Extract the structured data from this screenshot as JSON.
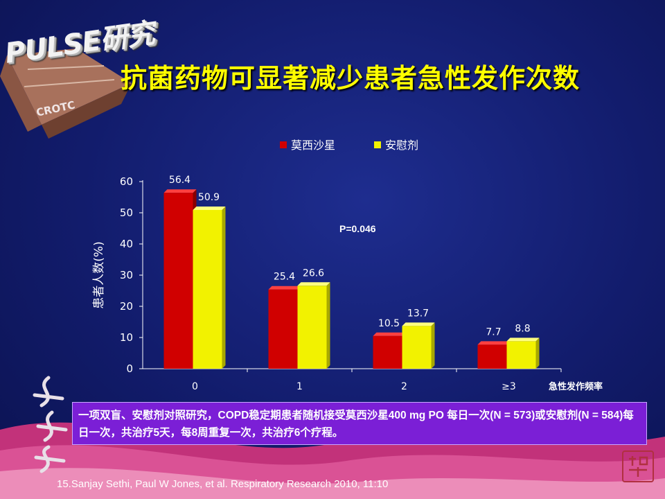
{
  "logo": {
    "text": "PULSE研究",
    "sub": "CROTC"
  },
  "title": "抗菌药物可显著减少患者急性发作次数",
  "p_value": "P=0.046",
  "note": "一项双盲、安慰剂对照研究，COPD稳定期患者随机接受莫西沙星400 mg PO 每日一次(N = 573)或安慰剂(N = 584)每日一次，共治疗5天，每8周重复一次，共治疗6个疗程。",
  "reference": "15.Sanjay Sethi, Paul W Jones, et al. Respiratory Research 2010, 11:10",
  "colors": {
    "series1": "#d00000",
    "series2": "#f2f200",
    "title": "#ffff00",
    "note_bg": "#7b1fd6"
  },
  "chart_data": {
    "type": "bar",
    "categories": [
      "0",
      "1",
      "2",
      "≥3"
    ],
    "series": [
      {
        "name": "莫西沙星",
        "values": [
          56.4,
          25.4,
          10.5,
          7.7
        ],
        "labels": [
          "56.4",
          "25.4",
          "10.5",
          "7.7"
        ]
      },
      {
        "name": "安慰剂",
        "values": [
          50.9,
          26.6,
          13.7,
          8.8
        ],
        "labels": [
          "50.9",
          "26.6",
          "13.7",
          "8.8"
        ]
      }
    ],
    "ylabel": "患者人数(%)",
    "xlabel": "急性发作频率",
    "ylim": [
      0,
      60
    ],
    "yticks": [
      "0",
      "10",
      "20",
      "30",
      "40",
      "50",
      "60"
    ],
    "legend": "top-center",
    "grid": false
  }
}
